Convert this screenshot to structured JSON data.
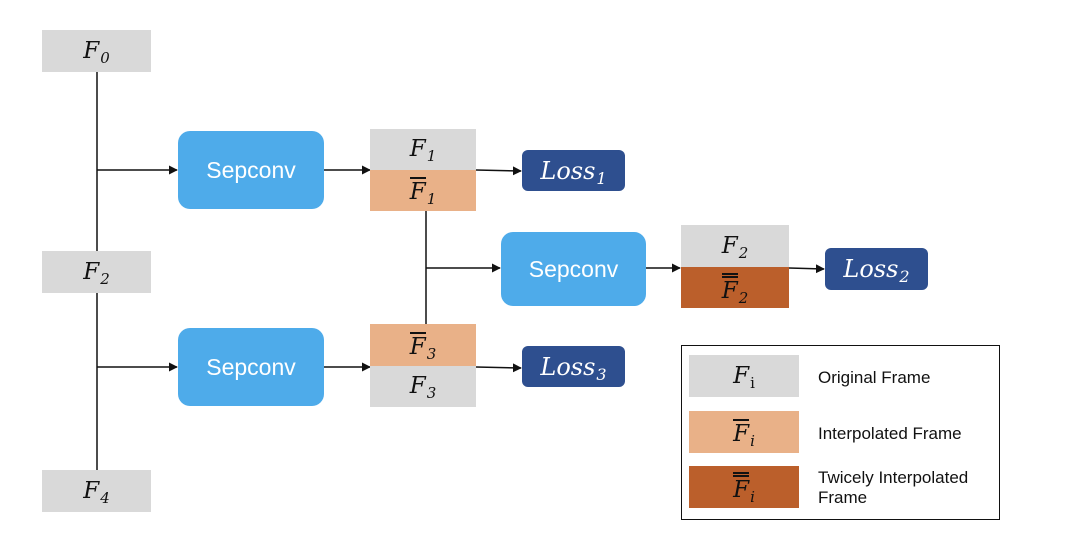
{
  "frames": {
    "f0": {
      "base": "F",
      "sub": "0"
    },
    "f2": {
      "base": "F",
      "sub": "2"
    },
    "f4": {
      "base": "F",
      "sub": "4"
    },
    "f1": {
      "base": "F",
      "sub": "1"
    },
    "f1_bar": {
      "base": "F",
      "sub": "1"
    },
    "f3_bar": {
      "base": "F",
      "sub": "3"
    },
    "f3": {
      "base": "F",
      "sub": "3"
    },
    "f2_right": {
      "base": "F",
      "sub": "2"
    },
    "f2_dbar": {
      "base": "F",
      "sub": "2"
    }
  },
  "sepconv": {
    "top": "Sepconv",
    "middle": "Sepconv",
    "bottom": "Sepconv"
  },
  "losses": {
    "loss1": {
      "base": "Loss",
      "sub": "1"
    },
    "loss2": {
      "base": "Loss",
      "sub": "2"
    },
    "loss3": {
      "base": "Loss",
      "sub": "3"
    }
  },
  "legend": {
    "original": {
      "symbol_base": "F",
      "symbol_sub": "i",
      "label": "Original Frame"
    },
    "interpolated": {
      "symbol_base": "F",
      "symbol_sub": "i",
      "label": "Interpolated Frame"
    },
    "twicely": {
      "symbol_base": "F",
      "symbol_sub": "i",
      "label_line1": "Twicely Interpolated",
      "label_line2": "Frame"
    }
  },
  "colors": {
    "original_frame": "#d9d9d9",
    "interpolated_frame": "#e9b188",
    "twicely_interpolated_frame": "#bb5f2b",
    "sepconv": "#4eabea",
    "loss": "#2e4f8f"
  }
}
